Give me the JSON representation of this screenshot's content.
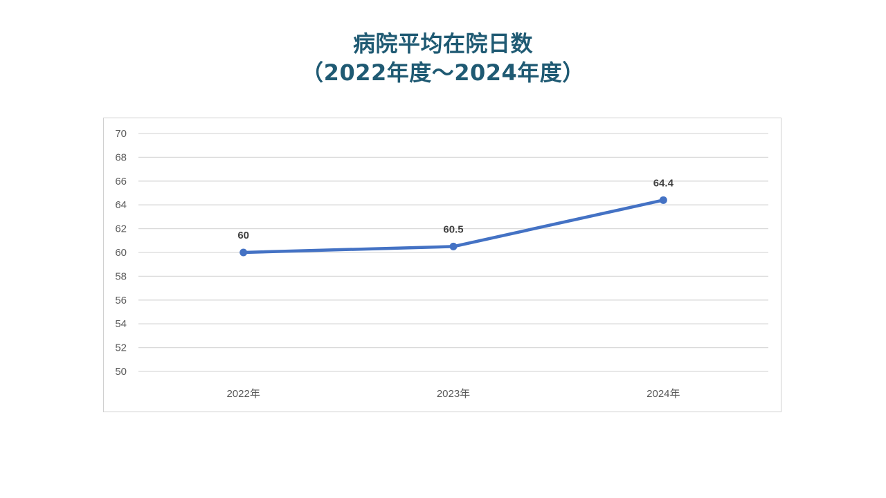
{
  "title": {
    "line1": "病院平均在院日数",
    "line2": "（2022年度～2024年度）"
  },
  "colors": {
    "title": "#1f5a73",
    "series": "#4472c4",
    "grid": "#d9d9d9"
  },
  "chart_data": {
    "type": "line",
    "categories": [
      "2022年",
      "2023年",
      "2024年"
    ],
    "series": [
      {
        "values": [
          60,
          60.5,
          64.4
        ],
        "data_labels": [
          "60",
          "60.5",
          "64.4"
        ]
      }
    ],
    "ylim": [
      50,
      70
    ],
    "yticks": [
      50,
      52,
      54,
      56,
      58,
      60,
      62,
      64,
      66,
      68,
      70
    ],
    "grid": true,
    "legend": "none"
  }
}
